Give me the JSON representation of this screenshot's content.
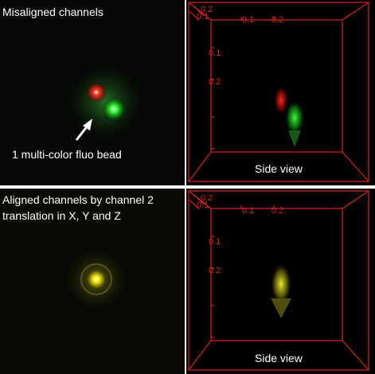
{
  "panels": {
    "top_left": {
      "caption": "Misaligned channels",
      "annotation": "1 multi-color fluo bead"
    },
    "top_right": {
      "side_label": "Side view",
      "axis_ticks": {
        "corner": "0.2",
        "corner_sub": "0.1",
        "x_ticks": [
          "0.1",
          "0.2"
        ],
        "y_ticks": [
          "0.1",
          "0.2"
        ]
      }
    },
    "bottom_left": {
      "caption_line1": "Aligned channels by channel 2",
      "caption_line2": "translation in X, Y and Z"
    },
    "bottom_right": {
      "side_label": "Side view",
      "axis_ticks": {
        "corner": "0.2",
        "corner_sub": "0.1",
        "x_ticks": [
          "0.1",
          "0.2"
        ],
        "y_ticks": [
          "0.1",
          "0.2"
        ]
      }
    }
  },
  "colors": {
    "axis_box": "#dd2222",
    "red_channel": "#ff2a1a",
    "green_channel": "#33ff33",
    "merged": "#ffee10"
  }
}
